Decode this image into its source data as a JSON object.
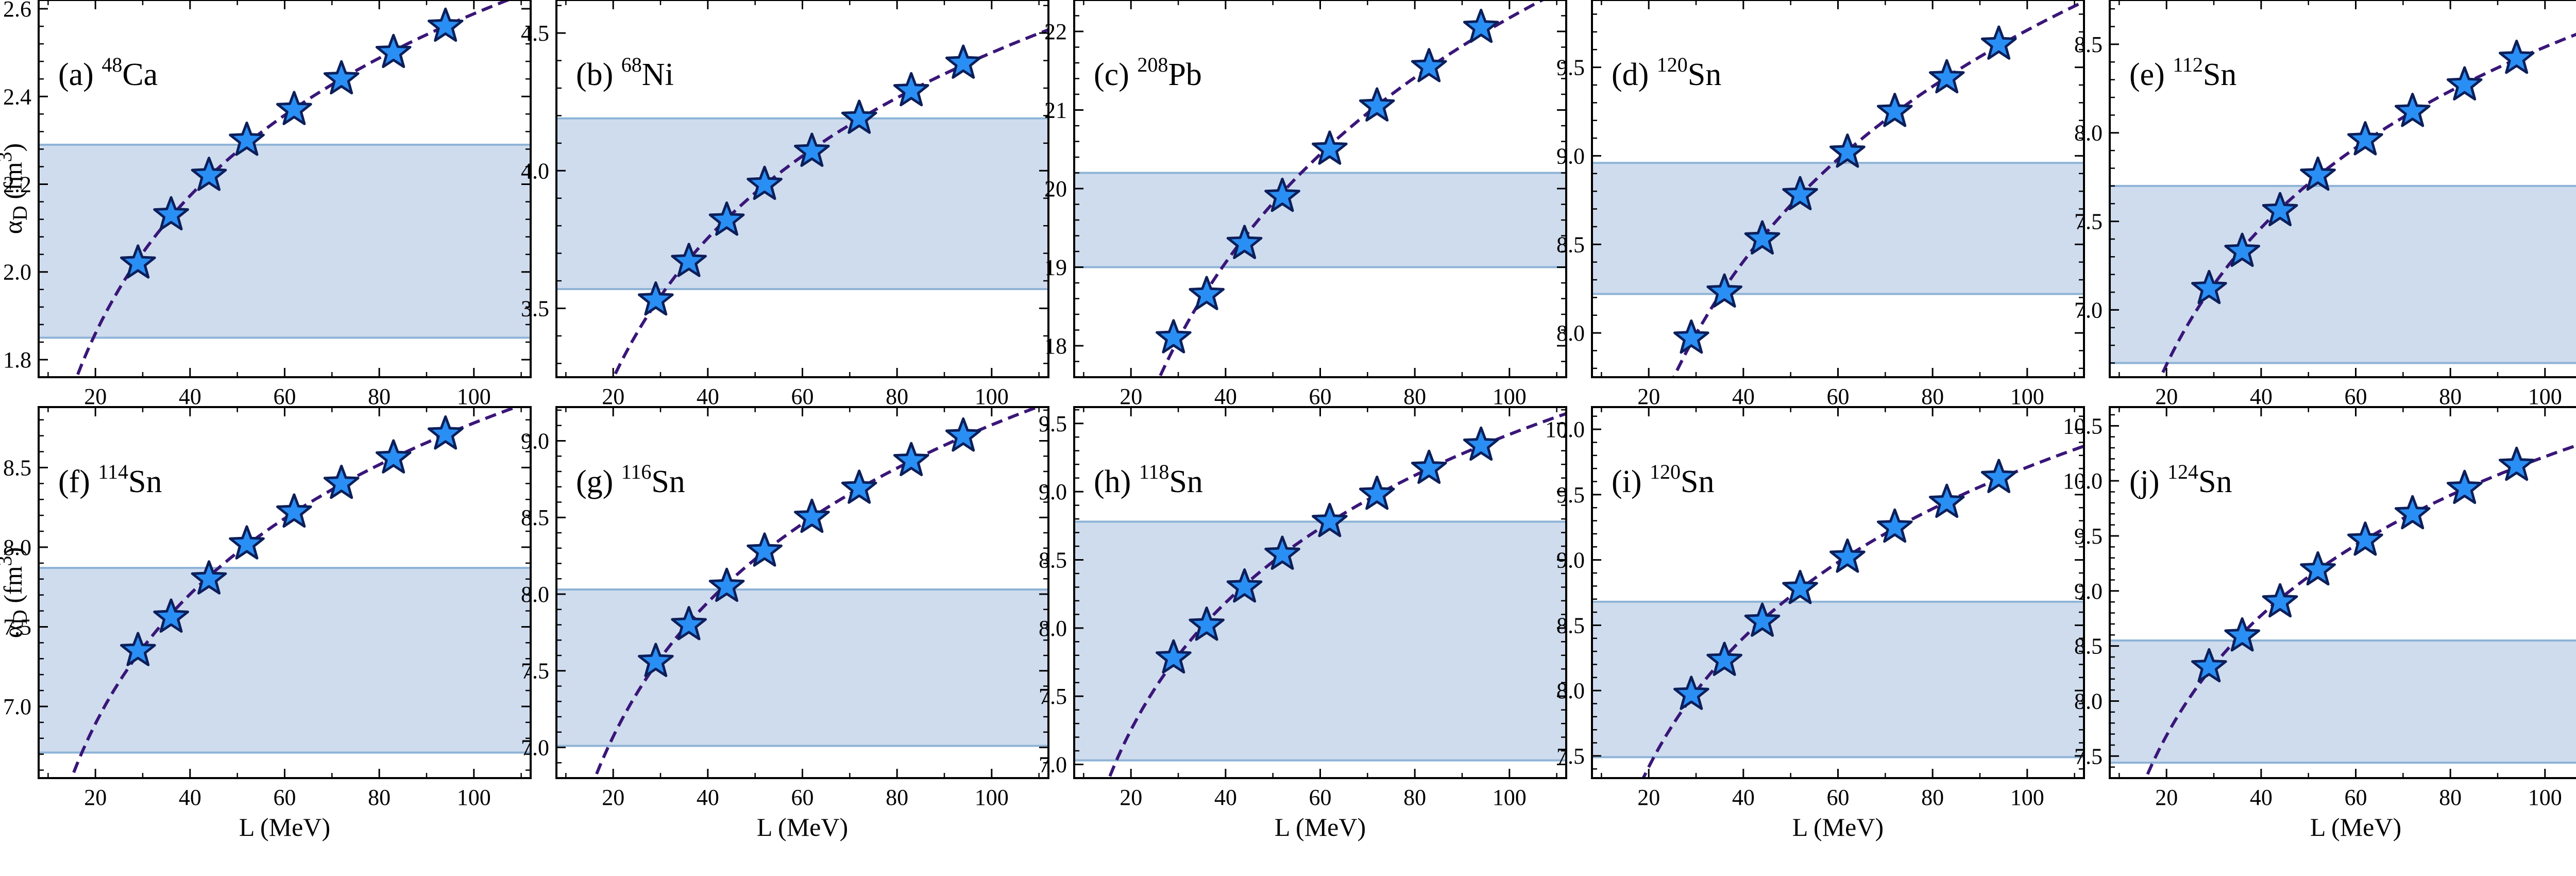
{
  "figure": {
    "xlabel": "L (MeV)",
    "ylabel_main": "α",
    "ylabel_sub": "D",
    "ylabel_unit_pre": " (fm",
    "ylabel_unit_sup": "3",
    "ylabel_unit_post": ")"
  },
  "colors": {
    "band_fill": "#cfdcee",
    "band_edge": "#8eb3d6",
    "curve": "#3a1678",
    "star_fill": "#2a8ff5",
    "star_edge": "#0c1f5a"
  },
  "chart_data": [
    {
      "type": "scatter",
      "label": "(a)",
      "mass": "48",
      "element": "Ca",
      "x": [
        29,
        36,
        44,
        52,
        62,
        72,
        83,
        94
      ],
      "y": [
        2.02,
        2.13,
        2.22,
        2.3,
        2.37,
        2.44,
        2.5,
        2.56
      ],
      "fit": "dashed",
      "band": [
        1.85,
        2.29
      ],
      "xlim": [
        8,
        112
      ],
      "ylim": [
        1.76,
        2.62
      ],
      "xticks": [
        "20",
        "40",
        "60",
        "80",
        "100"
      ],
      "yticks": [
        "1.8",
        "2.0",
        "2.2",
        "2.4",
        "2.6"
      ],
      "ytick_values": [
        1.8,
        2.0,
        2.2,
        2.4,
        2.6
      ],
      "xlabel": "",
      "ylabel": "αD (fm3)"
    },
    {
      "type": "scatter",
      "label": "(b)",
      "mass": "68",
      "element": "Ni",
      "x": [
        29,
        36,
        44,
        52,
        62,
        72,
        83,
        94
      ],
      "y": [
        3.53,
        3.67,
        3.82,
        3.95,
        4.07,
        4.19,
        4.29,
        4.39
      ],
      "fit": "dashed",
      "band": [
        3.57,
        4.19
      ],
      "xlim": [
        8,
        112
      ],
      "ylim": [
        3.25,
        4.62
      ],
      "xticks": [
        "20",
        "40",
        "60",
        "80",
        "100"
      ],
      "yticks": [
        "3.5",
        "4.0",
        "4.5"
      ],
      "ytick_values": [
        3.5,
        4.0,
        4.5
      ],
      "xlabel": "",
      "ylabel": ""
    },
    {
      "type": "scatter",
      "label": "(c)",
      "mass": "208",
      "element": "Pb",
      "x": [
        29,
        36,
        44,
        52,
        62,
        72,
        83,
        94
      ],
      "y": [
        18.1,
        18.65,
        19.3,
        19.9,
        20.5,
        21.05,
        21.55,
        22.05
      ],
      "fit": "dashed",
      "band": [
        19.0,
        20.2
      ],
      "xlim": [
        8,
        112
      ],
      "ylim": [
        17.6,
        22.4
      ],
      "xticks": [
        "20",
        "40",
        "60",
        "80",
        "100"
      ],
      "yticks": [
        "18",
        "19",
        "20",
        "21",
        "22"
      ],
      "ytick_values": [
        18,
        19,
        20,
        21,
        22
      ],
      "xlabel": "",
      "ylabel": ""
    },
    {
      "type": "scatter",
      "label": "(d)",
      "mass": "120",
      "element": "Sn",
      "x": [
        29,
        36,
        44,
        52,
        62,
        72,
        83,
        94
      ],
      "y": [
        7.97,
        8.23,
        8.53,
        8.78,
        9.02,
        9.25,
        9.44,
        9.63
      ],
      "fit": "dashed",
      "band": [
        8.22,
        8.96
      ],
      "xlim": [
        8,
        112
      ],
      "ylim": [
        7.75,
        9.88
      ],
      "xticks": [
        "20",
        "40",
        "60",
        "80",
        "100"
      ],
      "yticks": [
        "8.0",
        "8.5",
        "9.0",
        "9.5"
      ],
      "ytick_values": [
        8.0,
        8.5,
        9.0,
        9.5
      ],
      "xlabel": "",
      "ylabel": ""
    },
    {
      "type": "scatter",
      "label": "(e)",
      "mass": "112",
      "element": "Sn",
      "x": [
        29,
        36,
        44,
        52,
        62,
        72,
        83,
        94
      ],
      "y": [
        7.12,
        7.33,
        7.56,
        7.76,
        7.96,
        8.12,
        8.27,
        8.42
      ],
      "fit": "dashed",
      "band": [
        6.7,
        7.7
      ],
      "xlim": [
        8,
        112
      ],
      "ylim": [
        6.62,
        8.75
      ],
      "xticks": [
        "20",
        "40",
        "60",
        "80",
        "100"
      ],
      "yticks": [
        "7.0",
        "7.5",
        "8.0",
        "8.5"
      ],
      "ytick_values": [
        7.0,
        7.5,
        8.0,
        8.5
      ],
      "xlabel": "",
      "ylabel": ""
    },
    {
      "type": "scatter",
      "label": "(f)",
      "mass": "114",
      "element": "Sn",
      "x": [
        29,
        36,
        44,
        52,
        62,
        72,
        83,
        94
      ],
      "y": [
        7.35,
        7.56,
        7.8,
        8.02,
        8.22,
        8.4,
        8.56,
        8.71
      ],
      "fit": "dashed",
      "band": [
        6.71,
        7.87
      ],
      "xlim": [
        8,
        112
      ],
      "ylim": [
        6.55,
        8.88
      ],
      "xticks": [
        "20",
        "40",
        "60",
        "80",
        "100"
      ],
      "yticks": [
        "7.0",
        "7.5",
        "8.0",
        "8.5"
      ],
      "ytick_values": [
        7.0,
        7.5,
        8.0,
        8.5
      ],
      "xlabel": "L (MeV)",
      "ylabel": "αD (fm3)"
    },
    {
      "type": "scatter",
      "label": "(g)",
      "mass": "116",
      "element": "Sn",
      "x": [
        29,
        36,
        44,
        52,
        62,
        72,
        83,
        94
      ],
      "y": [
        7.56,
        7.8,
        8.05,
        8.28,
        8.5,
        8.69,
        8.87,
        9.03
      ],
      "fit": "dashed",
      "band": [
        7.01,
        8.03
      ],
      "xlim": [
        8,
        112
      ],
      "ylim": [
        6.8,
        9.22
      ],
      "xticks": [
        "20",
        "40",
        "60",
        "80",
        "100"
      ],
      "yticks": [
        "7.0",
        "7.5",
        "8.0",
        "8.5",
        "9.0"
      ],
      "ytick_values": [
        7.0,
        7.5,
        8.0,
        8.5,
        9.0
      ],
      "xlabel": "L (MeV)",
      "ylabel": ""
    },
    {
      "type": "scatter",
      "label": "(h)",
      "mass": "118",
      "element": "Sn",
      "x": [
        29,
        36,
        44,
        52,
        62,
        72,
        83,
        94
      ],
      "y": [
        7.78,
        8.02,
        8.3,
        8.54,
        8.78,
        8.98,
        9.17,
        9.34
      ],
      "fit": "dashed",
      "band": [
        7.03,
        8.78
      ],
      "xlim": [
        8,
        112
      ],
      "ylim": [
        6.9,
        9.62
      ],
      "xticks": [
        "20",
        "40",
        "60",
        "80",
        "100"
      ],
      "yticks": [
        "7.0",
        "7.5",
        "8.0",
        "8.5",
        "9.0",
        "9.5"
      ],
      "ytick_values": [
        7.0,
        7.5,
        8.0,
        8.5,
        9.0,
        9.5
      ],
      "xlabel": "L (MeV)",
      "ylabel": ""
    },
    {
      "type": "scatter",
      "label": "(i)",
      "mass": "120",
      "element": "Sn",
      "x": [
        29,
        36,
        44,
        52,
        62,
        72,
        83,
        94
      ],
      "y": [
        7.97,
        8.23,
        8.53,
        8.78,
        9.02,
        9.25,
        9.44,
        9.63
      ],
      "fit": "dashed",
      "band": [
        7.49,
        8.68
      ],
      "xlim": [
        8,
        112
      ],
      "ylim": [
        7.33,
        10.17
      ],
      "xticks": [
        "20",
        "40",
        "60",
        "80",
        "100"
      ],
      "yticks": [
        "7.5",
        "8.0",
        "8.5",
        "9.0",
        "9.5",
        "10.0"
      ],
      "ytick_values": [
        7.5,
        8.0,
        8.5,
        9.0,
        9.5,
        10.0
      ],
      "xlabel": "L (MeV)",
      "ylabel": ""
    },
    {
      "type": "scatter",
      "label": "(j)",
      "mass": "124",
      "element": "Sn",
      "x": [
        29,
        36,
        44,
        52,
        62,
        72,
        83,
        94
      ],
      "y": [
        8.31,
        8.59,
        8.9,
        9.19,
        9.46,
        9.7,
        9.93,
        10.14
      ],
      "fit": "dashed",
      "band": [
        7.44,
        8.55
      ],
      "xlim": [
        8,
        112
      ],
      "ylim": [
        7.3,
        10.67
      ],
      "xticks": [
        "20",
        "40",
        "60",
        "80",
        "100"
      ],
      "yticks": [
        "7.5",
        "8.0",
        "8.5",
        "9.0",
        "9.5",
        "10.0",
        "10.5"
      ],
      "ytick_values": [
        7.5,
        8.0,
        8.5,
        9.0,
        9.5,
        10.0,
        10.5
      ],
      "xlabel": "L (MeV)",
      "ylabel": ""
    }
  ]
}
